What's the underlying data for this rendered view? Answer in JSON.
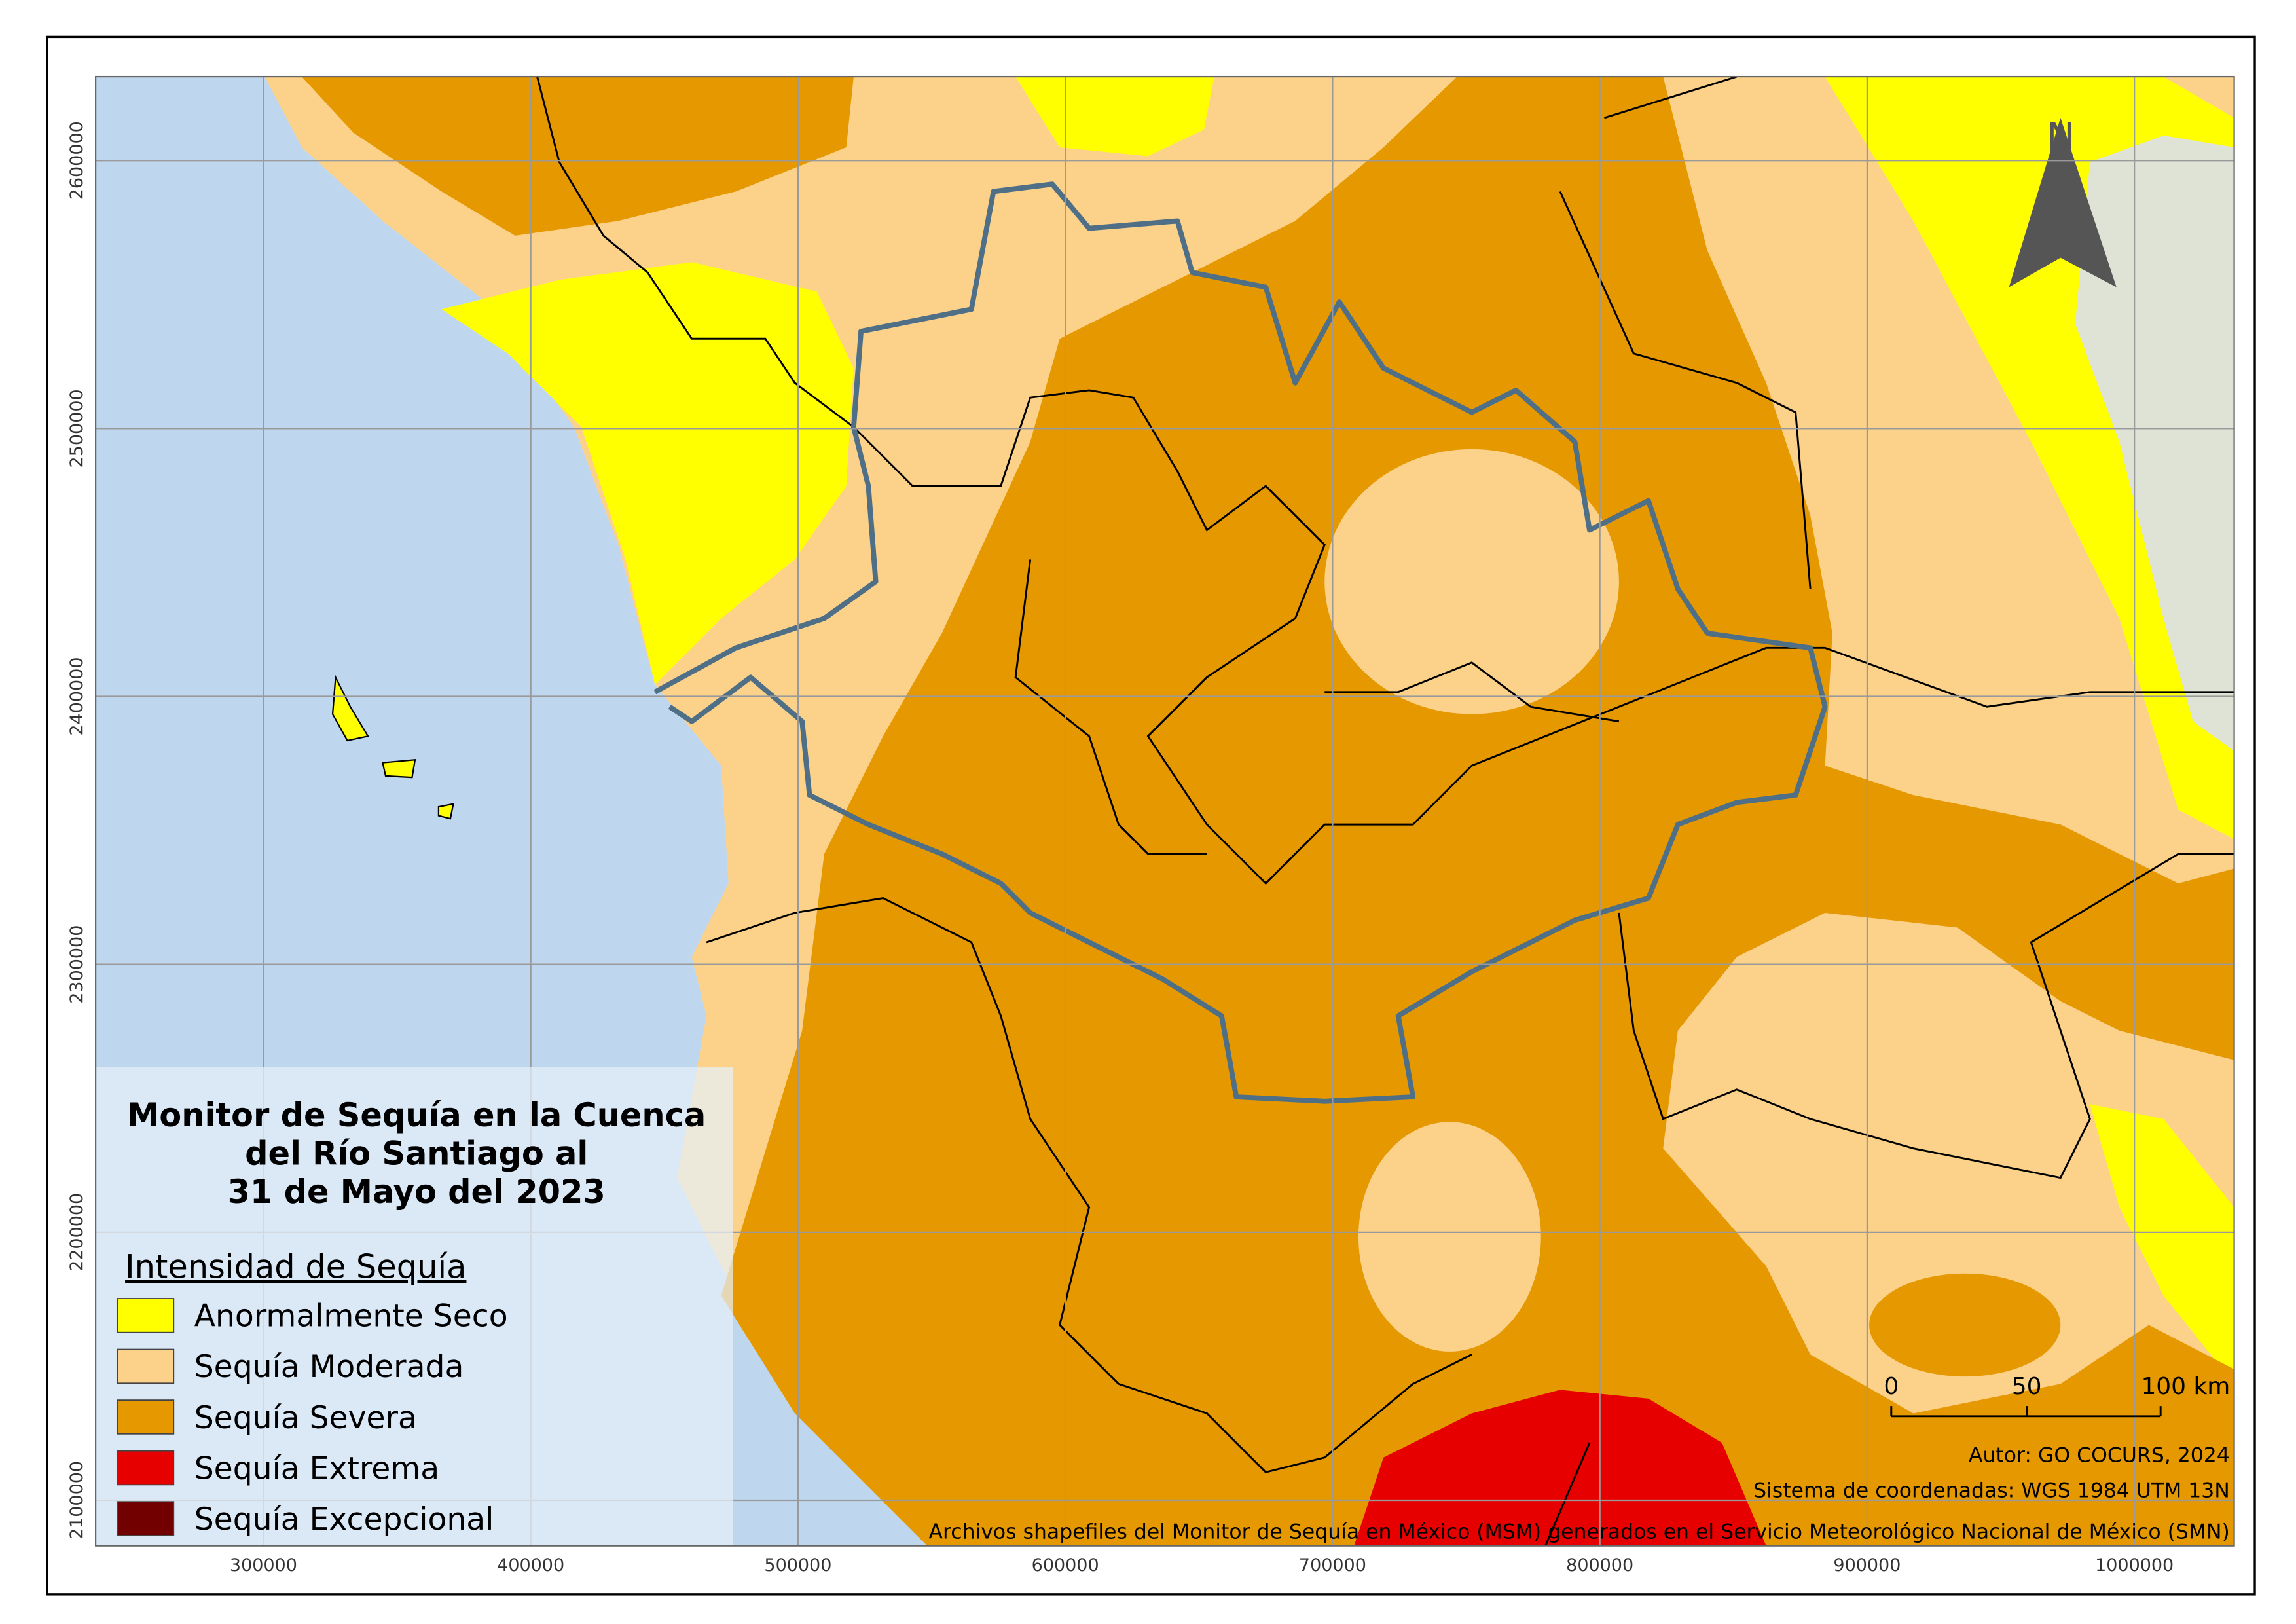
{
  "map": {
    "title": [
      "Monitor de Sequía en la Cuenca",
      "del Río Santiago al",
      "31 de Mayo del 2023"
    ],
    "legend": {
      "title": "Intensidad de Sequía",
      "items": [
        {
          "label": "Anormalmente Seco",
          "color": "#ffff00"
        },
        {
          "label": "Sequía Moderada",
          "color": "#fcd28a"
        },
        {
          "label": "Sequía Severa",
          "color": "#e69800"
        },
        {
          "label": "Sequía Extrema",
          "color": "#e60000"
        },
        {
          "label": "Sequía Excepcional",
          "color": "#730000"
        }
      ]
    },
    "xticks": [
      "300000",
      "400000",
      "500000",
      "600000",
      "700000",
      "800000",
      "900000",
      "1000000"
    ],
    "yticks": [
      "2600000",
      "2500000",
      "2400000",
      "2300000",
      "2200000",
      "2100000"
    ],
    "scale_bar": [
      "0",
      "50",
      "100 km"
    ],
    "north": "N",
    "credits": [
      "Autor: GO COCURS, 2024",
      "Sistema de coordenadas: WGS 1984 UTM 13N",
      "Archivos shapefiles del Monitor de Sequía en México (MSM) generados en el Servicio Meteorológico Nacional de México (SMN)"
    ]
  }
}
